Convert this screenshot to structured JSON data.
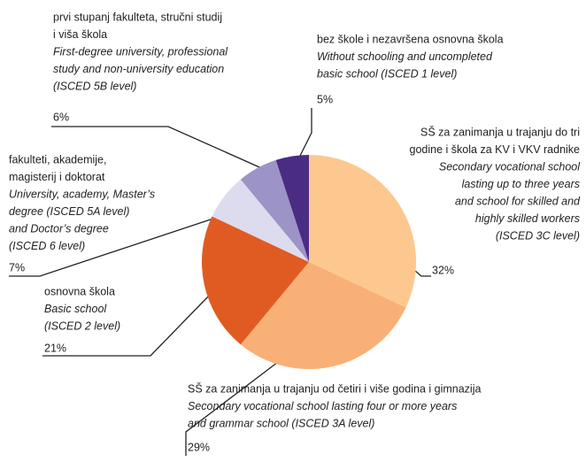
{
  "chart_data": {
    "type": "pie",
    "categories": [
      {
        "name": [
          "bez škole i nezavršena osnovna škola"
        ],
        "english": [
          "Without schooling and uncompleted",
          "basic school (ISCED 1 level)"
        ]
      },
      {
        "name": [
          "SŠ za zanimanja u trajanju do tri",
          "godine i škola za KV i VKV radnike"
        ],
        "english": [
          "Secondary vocational school",
          "lasting up to three years",
          "and school for skilled and",
          "highly skilled workers",
          "(ISCED 3C level)"
        ]
      },
      {
        "name": [
          "SŠ za zanimanja u trajanju od četiri i više godina i gimnazija"
        ],
        "english": [
          "Secondary vocational school lasting four or more years",
          "and grammar school (ISCED 3A level)"
        ]
      },
      {
        "name": [
          "osnovna škola"
        ],
        "english": [
          "Basic school",
          "(ISCED 2 level)"
        ]
      },
      {
        "name": [
          "fakulteti, akademije,",
          "magisterij i doktorat"
        ],
        "english": [
          "University, academy, Master’s",
          "degree (ISCED 5A level)",
          "and Doctor’s degree",
          "(ISCED 6 level)"
        ]
      },
      {
        "name": [
          "prvi stupanj fakulteta, stručni studij",
          "i viša škola"
        ],
        "english": [
          "First-degree university, professional",
          "study and non-university education",
          "(ISCED 5B level)"
        ]
      }
    ],
    "values": [
      5,
      32,
      29,
      21,
      7,
      6
    ],
    "value_labels": [
      "5%",
      "32%",
      "29%",
      "21%",
      "7%",
      "6%"
    ],
    "colors": [
      "#4b2c85",
      "#fdc88f",
      "#f8b076",
      "#e05b21",
      "#dddbee",
      "#9c93c6"
    ]
  }
}
